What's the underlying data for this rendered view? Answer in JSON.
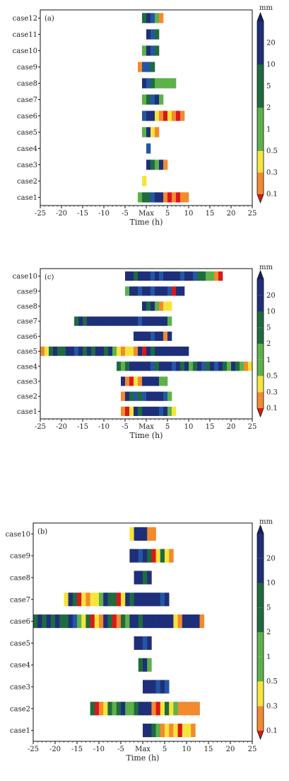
{
  "chart_data": [
    {
      "type": "heatmap",
      "panel_label": "(a)",
      "xlabel": "Time (h)",
      "xlim": [
        -25,
        25
      ],
      "xticks": [
        "-25",
        "-20",
        "-15",
        "-10",
        "-5",
        "Max",
        "5",
        "10",
        "15",
        "20",
        "25"
      ],
      "colorbar_unit": "mm",
      "colorbar_levels": [
        "0.1",
        "0.3",
        "0.5",
        "1",
        "2",
        "5",
        "10",
        "20"
      ],
      "cases": [
        "case1",
        "case2",
        "case3",
        "case4",
        "case5",
        "case6",
        "case7",
        "case8",
        "case9",
        "case10",
        "case11",
        "case12"
      ],
      "rows": [
        {
          "case": "case1",
          "start": -2,
          "colors": [
            "green",
            "dkgreen",
            "dkgreen",
            "blue",
            "navy",
            "navy",
            "orange",
            "red",
            "orange",
            "red",
            "orange",
            "orange"
          ]
        },
        {
          "case": "case2",
          "start": -1,
          "colors": [
            "yellow",
            "white",
            "white"
          ]
        },
        {
          "case": "case3",
          "start": 0,
          "colors": [
            "navy",
            "dkgreen",
            "green",
            "navy",
            "orange"
          ]
        },
        {
          "case": "case4",
          "start": 0,
          "colors": [
            "blue"
          ]
        },
        {
          "case": "case5",
          "start": -1,
          "colors": [
            "green",
            "navy",
            "yellow",
            "orange"
          ]
        },
        {
          "case": "case6",
          "start": -1,
          "colors": [
            "blue",
            "navy",
            "navy",
            "yellow",
            "orange",
            "red",
            "yellow",
            "orange",
            "red",
            "orange"
          ]
        },
        {
          "case": "case7",
          "start": -1,
          "colors": [
            "green",
            "dkgreen",
            "blue",
            "navy",
            "green"
          ]
        },
        {
          "case": "case8",
          "start": -1,
          "colors": [
            "navy",
            "blue",
            "dkgreen",
            "green",
            "green",
            "green",
            "green",
            "green"
          ]
        },
        {
          "case": "case9",
          "start": -2,
          "colors": [
            "orange",
            "blue",
            "blue",
            "dkgreen"
          ]
        },
        {
          "case": "case10",
          "start": -1,
          "colors": [
            "green",
            "navy",
            "blue",
            "dkgreen"
          ]
        },
        {
          "case": "case11",
          "start": 0,
          "colors": [
            "navy",
            "blue",
            "dkgreen"
          ]
        },
        {
          "case": "case12",
          "start": -1,
          "colors": [
            "dkgreen",
            "navy",
            "blue",
            "green",
            "orange"
          ]
        }
      ]
    },
    {
      "type": "heatmap",
      "panel_label": "(c)",
      "xlabel": "Time (h)",
      "xlim": [
        -25,
        25
      ],
      "xticks": [
        "-25",
        "-20",
        "-15",
        "-10",
        "-5",
        "Max",
        "5",
        "10",
        "15",
        "20",
        "25"
      ],
      "colorbar_unit": "mm",
      "colorbar_levels": [
        "0.1",
        "0.3",
        "0.5",
        "1",
        "2",
        "5",
        "10",
        "20"
      ],
      "cases": [
        "case1",
        "case2",
        "case3",
        "case4",
        "case5",
        "case6",
        "case7",
        "case8",
        "case9",
        "case10"
      ],
      "rows": [
        {
          "case": "case1",
          "start": -6,
          "colors": [
            "orange",
            "red",
            "yellow",
            "navy",
            "dkgreen",
            "navy",
            "navy",
            "navy",
            "navy",
            "blue",
            "navy",
            "green",
            "yellow"
          ]
        },
        {
          "case": "case2",
          "start": -6,
          "colors": [
            "orange",
            "navy",
            "dkgreen",
            "blue",
            "dkgreen",
            "blue",
            "navy",
            "navy",
            "navy",
            "navy",
            "blue",
            "green"
          ]
        },
        {
          "case": "case3",
          "start": -6,
          "colors": [
            "navy",
            "orange",
            "red",
            "yellow",
            "orange",
            "navy",
            "navy",
            "navy",
            "navy",
            "green",
            "green"
          ]
        },
        {
          "case": "case4",
          "start": -7,
          "colors": [
            "dkgreen",
            "green",
            "dkgreen",
            "navy",
            "navy",
            "navy",
            "navy",
            "navy",
            "blue",
            "dkgreen",
            "navy",
            "navy",
            "navy",
            "blue",
            "navy",
            "dkgreen",
            "navy",
            "green",
            "dkgreen",
            "navy",
            "blue",
            "dkgreen",
            "navy",
            "blue",
            "navy",
            "dkgreen",
            "green",
            "navy",
            "dkgreen",
            "green",
            "orange",
            "yellow"
          ]
        },
        {
          "case": "case5",
          "start": -25,
          "colors": [
            "orange",
            "yellow",
            "dkgreen",
            "navy",
            "dkgreen",
            "dkgreen",
            "navy",
            "navy",
            "blue",
            "navy",
            "dkgreen",
            "navy",
            "dkgreen",
            "navy",
            "navy",
            "dkgreen",
            "navy",
            "green",
            "yellow",
            "orange",
            "yellow",
            "yellow",
            "orange",
            "navy",
            "red",
            "navy",
            "dkgreen",
            "navy",
            "navy",
            "navy",
            "navy",
            "navy",
            "navy",
            "navy",
            "navy"
          ]
        },
        {
          "case": "case6",
          "start": -3,
          "colors": [
            "navy",
            "navy",
            "navy",
            "navy",
            "blue",
            "navy",
            "navy",
            "orange",
            "navy"
          ]
        },
        {
          "case": "case7",
          "start": -17,
          "colors": [
            "dkgreen",
            "navy",
            "dkgreen",
            "navy",
            "navy",
            "navy",
            "navy",
            "navy",
            "navy",
            "navy",
            "navy",
            "navy",
            "navy",
            "navy",
            "navy",
            "blue",
            "navy",
            "navy",
            "navy",
            "navy",
            "navy",
            "navy",
            "green"
          ]
        },
        {
          "case": "case8",
          "start": -1,
          "colors": [
            "navy",
            "dkgreen",
            "navy",
            "green",
            "orange",
            "yellow",
            "yellow"
          ]
        },
        {
          "case": "case9",
          "start": -5,
          "colors": [
            "green",
            "navy",
            "navy",
            "blue",
            "navy",
            "navy",
            "blue",
            "navy",
            "navy",
            "navy",
            "blue",
            "red",
            "navy",
            "navy"
          ]
        },
        {
          "case": "case10",
          "start": -5,
          "colors": [
            "navy",
            "navy",
            "dkgreen",
            "navy",
            "navy",
            "navy",
            "blue",
            "navy",
            "blue",
            "navy",
            "navy",
            "navy",
            "navy",
            "blue",
            "navy",
            "navy",
            "blue",
            "dkgreen",
            "dkgreen",
            "green",
            "green",
            "orange",
            "red"
          ]
        }
      ]
    },
    {
      "type": "heatmap",
      "panel_label": "(b)",
      "xlabel": "Time (h)",
      "xlim": [
        -25,
        25
      ],
      "xticks": [
        "-25",
        "-20",
        "-15",
        "-10",
        "-5",
        "Max",
        "5",
        "10",
        "15",
        "20",
        "25"
      ],
      "colorbar_unit": "mm",
      "colorbar_levels": [
        "0.1",
        "0.3",
        "0.5",
        "1",
        "2",
        "5",
        "10",
        "20"
      ],
      "cases": [
        "case1",
        "case2",
        "case3",
        "case4",
        "case5",
        "case6",
        "case7",
        "case8",
        "case9",
        "case10"
      ],
      "rows": [
        {
          "case": "case1",
          "start": 0,
          "colors": [
            "navy",
            "navy",
            "dkgreen",
            "green",
            "orange",
            "yellow",
            "orange",
            "yellow",
            "red",
            "yellow",
            "yellow",
            "orange"
          ]
        },
        {
          "case": "case2",
          "start": -12,
          "colors": [
            "dkgreen",
            "red",
            "orange",
            "yellow",
            "dkgreen",
            "green",
            "dkgreen",
            "navy",
            "green",
            "green",
            "dkgreen",
            "navy",
            "navy",
            "navy",
            "orange",
            "red",
            "yellow",
            "dkgreen",
            "yellow",
            "green",
            "orange",
            "orange",
            "orange",
            "orange",
            "orange"
          ]
        },
        {
          "case": "case3",
          "start": 0,
          "colors": [
            "navy",
            "navy",
            "navy",
            "blue",
            "navy",
            "blue"
          ]
        },
        {
          "case": "case4",
          "start": -1,
          "colors": [
            "dkgreen",
            "navy",
            "green"
          ]
        },
        {
          "case": "case5",
          "start": -2,
          "colors": [
            "navy",
            "navy",
            "blue",
            "navy"
          ]
        },
        {
          "case": "case6",
          "start": -25,
          "colors": [
            "dkgreen",
            "navy",
            "dkgreen",
            "navy",
            "dkgreen",
            "navy",
            "dkgreen",
            "dkgreen",
            "navy",
            "blue",
            "green",
            "yellow",
            "dkgreen",
            "red",
            "yellow",
            "orange",
            "navy",
            "dkgreen",
            "red",
            "orange",
            "dkgreen",
            "green",
            "navy",
            "navy",
            "dkgreen",
            "navy",
            "navy",
            "navy",
            "navy",
            "navy",
            "navy",
            "navy",
            "yellow",
            "orange",
            "navy",
            "navy",
            "navy",
            "navy",
            "orange"
          ]
        },
        {
          "case": "case7",
          "start": -18,
          "colors": [
            "yellow",
            "navy",
            "dkgreen",
            "red",
            "yellow",
            "orange",
            "yellow",
            "yellow",
            "green",
            "navy",
            "dkgreen",
            "dkgreen",
            "red",
            "yellow",
            "navy",
            "dkgreen",
            "navy",
            "navy",
            "navy",
            "navy",
            "navy",
            "navy",
            "blue",
            "navy"
          ]
        },
        {
          "case": "case8",
          "start": -2,
          "colors": [
            "navy",
            "navy",
            "dkgreen",
            "navy"
          ]
        },
        {
          "case": "case9",
          "start": -3,
          "colors": [
            "navy",
            "navy",
            "blue",
            "navy",
            "dkgreen",
            "red",
            "yellow",
            "dkgreen",
            "yellow",
            "orange"
          ]
        },
        {
          "case": "case10",
          "start": -3,
          "colors": [
            "yellow",
            "navy",
            "navy",
            "navy",
            "orange",
            "orange"
          ]
        }
      ]
    }
  ],
  "colors": {
    "red": "#d7191c",
    "orange": "#f28a2e",
    "yellow": "#f6e43a",
    "green": "#5cb14a",
    "dkgreen": "#1f6b3f",
    "blue": "#2456a4",
    "navy": "#1e2f7a",
    "dkblue": "#13215c",
    "white": "#ffffff"
  }
}
